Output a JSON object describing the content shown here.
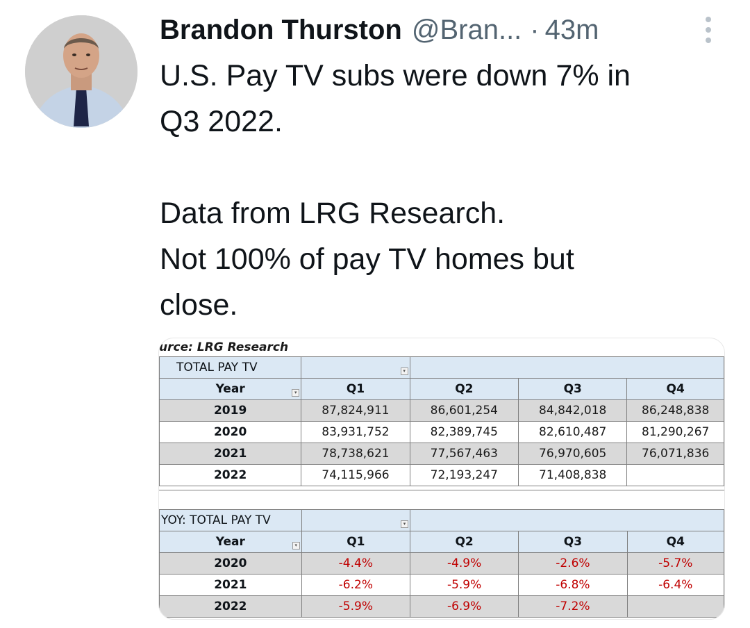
{
  "tweet": {
    "display_name": "Brandon Thurston",
    "handle": "@Bran...",
    "separator": "·",
    "time": "43m",
    "text": "U.S. Pay TV subs were down 7% in\nQ3 2022.\n\nData from LRG Research.\nNot 100% of pay TV homes but\nclose."
  },
  "icons": {
    "more": "more-vertical-icon",
    "filter": "filter-dropdown-icon"
  },
  "colors": {
    "header_fill": "#dbe8f4",
    "band_fill": "#d9d9d9",
    "negative": "#c00000",
    "secondary_text": "#536471"
  },
  "image": {
    "source_label": "urce: LRG Research",
    "total_table": {
      "title": "TOTAL PAY TV",
      "headers": [
        "Year",
        "Q1",
        "Q2",
        "Q3",
        "Q4"
      ],
      "rows": [
        [
          "2019",
          "87,824,911",
          "86,601,254",
          "84,842,018",
          "86,248,838"
        ],
        [
          "2020",
          "83,931,752",
          "82,389,745",
          "82,610,487",
          "81,290,267"
        ],
        [
          "2021",
          "78,738,621",
          "77,567,463",
          "76,970,605",
          "76,071,836"
        ],
        [
          "2022",
          "74,115,966",
          "72,193,247",
          "71,408,838",
          ""
        ]
      ]
    },
    "yoy_table": {
      "title": "YOY: TOTAL PAY TV",
      "headers": [
        "Year",
        "Q1",
        "Q2",
        "Q3",
        "Q4"
      ],
      "rows": [
        [
          "2020",
          "-4.4%",
          "-4.9%",
          "-2.6%",
          "-5.7%"
        ],
        [
          "2021",
          "-6.2%",
          "-5.9%",
          "-6.8%",
          "-6.4%"
        ],
        [
          "2022",
          "-5.9%",
          "-6.9%",
          "-7.2%",
          ""
        ]
      ]
    }
  }
}
